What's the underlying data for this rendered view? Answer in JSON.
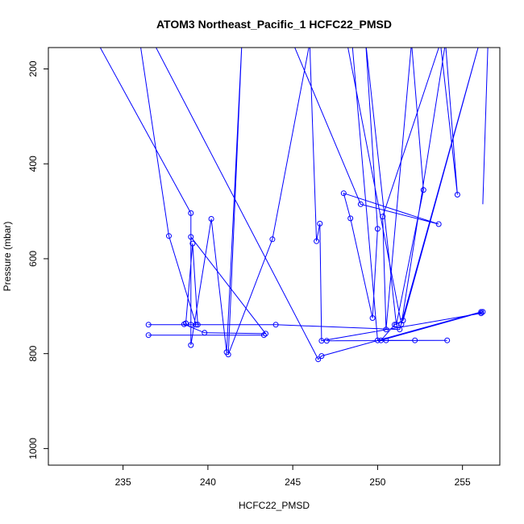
{
  "chart_data": {
    "type": "line",
    "title": "ATOM3 Northeast_Pacific_1 HCFC22_PMSD",
    "xlabel": "HCFC22_PMSD",
    "ylabel": "Pressure (mbar)",
    "xlim": [
      230.6,
      257.2
    ],
    "ylim": [
      1035,
      155
    ],
    "y_reversed": true,
    "x_ticks": [
      235,
      240,
      245,
      250,
      255
    ],
    "y_ticks": [
      200,
      400,
      600,
      800,
      1000
    ],
    "grid": false,
    "color": "#0000ff",
    "series": [
      {
        "markers": true,
        "x": [
          233.5,
          239.0,
          239.0,
          240.2,
          241.1,
          242.0,
          241.2,
          243.8,
          246.0,
          246.4,
          246.6,
          246.7,
          256.1,
          256.2,
          250.2,
          251.0,
          251.5,
          256.0,
          251.3,
          244.0,
          236.5,
          239.0,
          239.0,
          243.4,
          239.8,
          238.6,
          238.7,
          239.1,
          239.4,
          239.3,
          237.7,
          236.0,
          245.0,
          249.0,
          253.6,
          248.0,
          248.4,
          249.7,
          250.0,
          249.3,
          251.1,
          252.7,
          252.0,
          250.5,
          250.3,
          253.7,
          254.7,
          254.0,
          251.4,
          248.2,
          248.5,
          250.0,
          250.5,
          252.2,
          254.1,
          247.0
        ],
        "y": [
          145,
          504,
          782,
          516,
          797,
          145,
          802,
          559,
          145,
          563,
          526,
          773,
          715,
          712,
          772,
          739,
          730,
          145,
          749,
          739,
          739,
          739,
          554,
          758,
          756,
          738,
          736,
          568,
          739,
          739,
          552,
          145,
          145,
          485,
          527,
          462,
          515,
          725,
          537,
          145,
          739,
          455,
          145,
          749,
          511,
          145,
          465,
          145,
          738,
          145,
          145,
          772,
          772,
          772,
          772,
          773
        ]
      },
      {
        "markers": true,
        "x": [
          256.1,
          246.7,
          246.5,
          236.8
        ],
        "y": [
          712,
          805,
          812,
          145
        ]
      },
      {
        "markers": true,
        "x": [
          236.5,
          243.3
        ],
        "y": [
          761,
          761
        ]
      },
      {
        "markers": false,
        "x": [
          256.2,
          256.5
        ],
        "y": [
          485,
          145
        ]
      }
    ]
  }
}
